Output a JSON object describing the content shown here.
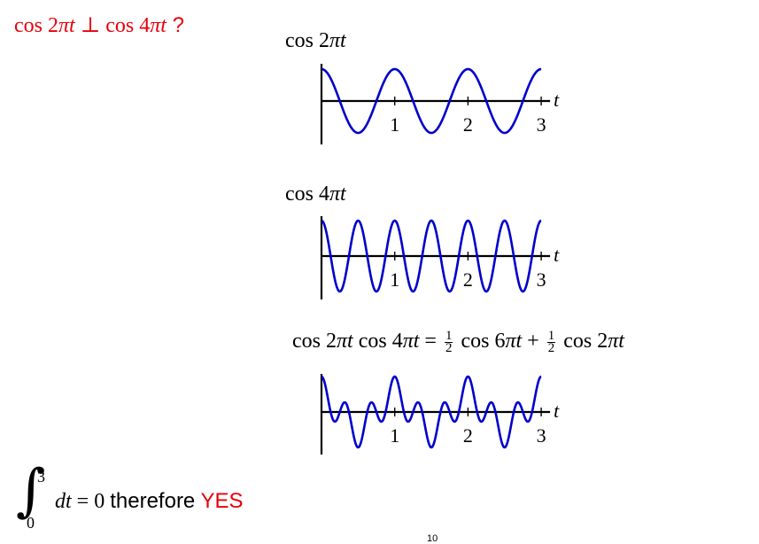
{
  "heading": {
    "part1": "cos 2",
    "pi": "π",
    "t1": "t",
    "perp": " ⊥ cos 4",
    "pi2": "π",
    "t2": "t",
    "q": " ?"
  },
  "chart_data": [
    {
      "type": "line",
      "title_parts": [
        "cos 2",
        "π",
        "t"
      ],
      "function": "cos(2*pi*t)",
      "x": [
        0,
        0.125,
        0.25,
        0.375,
        0.5,
        0.625,
        0.75,
        0.875,
        1,
        1.125,
        1.25,
        1.375,
        1.5,
        1.625,
        1.75,
        1.875,
        2,
        2.125,
        2.25,
        2.375,
        2.5,
        2.625,
        2.75,
        2.875,
        3
      ],
      "values": [
        1,
        0.707,
        0,
        -0.707,
        -1,
        -0.707,
        0,
        0.707,
        1,
        0.707,
        0,
        -0.707,
        -1,
        -0.707,
        0,
        0.707,
        1,
        0.707,
        0,
        -0.707,
        -1,
        -0.707,
        0,
        0.707,
        1
      ],
      "xlabel": "t",
      "xticks": [
        "1",
        "2",
        "3"
      ],
      "xlim": [
        0,
        3
      ],
      "ylim": [
        -1,
        1
      ],
      "color": "#0000cc"
    },
    {
      "type": "line",
      "title_parts": [
        "cos 4",
        "π",
        "t"
      ],
      "function": "cos(4*pi*t)",
      "x": [
        0,
        0.0625,
        0.125,
        0.1875,
        0.25,
        0.3125,
        0.375,
        0.4375,
        0.5,
        0.5625,
        0.625,
        0.6875,
        0.75,
        0.8125,
        0.875,
        0.9375,
        1,
        1.0625,
        1.125,
        1.1875,
        1.25,
        1.3125,
        1.375,
        1.4375,
        1.5,
        1.5625,
        1.625,
        1.6875,
        1.75,
        1.8125,
        1.875,
        1.9375,
        2,
        2.0625,
        2.125,
        2.1875,
        2.25,
        2.3125,
        2.375,
        2.4375,
        2.5,
        2.5625,
        2.625,
        2.6875,
        2.75,
        2.8125,
        2.875,
        2.9375,
        3
      ],
      "values": [
        1,
        0.707,
        0,
        -0.707,
        -1,
        -0.707,
        0,
        0.707,
        1,
        0.707,
        0,
        -0.707,
        -1,
        -0.707,
        0,
        0.707,
        1,
        0.707,
        0,
        -0.707,
        -1,
        -0.707,
        0,
        0.707,
        1,
        0.707,
        0,
        -0.707,
        -1,
        -0.707,
        0,
        0.707,
        1,
        0.707,
        0,
        -0.707,
        -1,
        -0.707,
        0,
        0.707,
        1,
        0.707,
        0,
        -0.707,
        -1,
        -0.707,
        0,
        0.707,
        1
      ],
      "xlabel": "t",
      "xticks": [
        "1",
        "2",
        "3"
      ],
      "xlim": [
        0,
        3
      ],
      "ylim": [
        -1,
        1
      ],
      "color": "#0000cc"
    },
    {
      "type": "line",
      "title_parts": {
        "lhs": "cos 2",
        "pi1": "π",
        "t1": "t",
        "mid": " cos 4",
        "pi2": "π",
        "t2": "t",
        "eq": " = ",
        "frac_num": "1",
        "frac_den": "2",
        "term1": " cos 6",
        "pi3": "π",
        "t3": "t",
        "plus": " + ",
        "term2": " cos 2",
        "pi4": "π",
        "t4": "t"
      },
      "function": "0.5*cos(6*pi*t) + 0.5*cos(2*pi*t)",
      "x": [
        0,
        0.125,
        0.25,
        0.375,
        0.5,
        0.625,
        0.75,
        0.875,
        1,
        1.125,
        1.25,
        1.375,
        1.5,
        1.625,
        1.75,
        1.875,
        2,
        2.125,
        2.25,
        2.375,
        2.5,
        2.625,
        2.75,
        2.875,
        3
      ],
      "values": [
        1,
        0,
        0,
        0,
        -1,
        0,
        0,
        0,
        1,
        0,
        0,
        0,
        -1,
        0,
        0,
        0,
        1,
        0,
        0,
        0,
        -1,
        0,
        0,
        0,
        1
      ],
      "xlabel": "t",
      "xticks": [
        "1",
        "2",
        "3"
      ],
      "xlim": [
        0,
        3
      ],
      "ylim": [
        -1,
        1
      ],
      "color": "#0000cc"
    }
  ],
  "conclusion": {
    "upper": "3",
    "lower": "0",
    "integrand": "dt",
    "equals": " = 0 ",
    "word": "therefore ",
    "answer": "YES"
  },
  "page_number": "10"
}
